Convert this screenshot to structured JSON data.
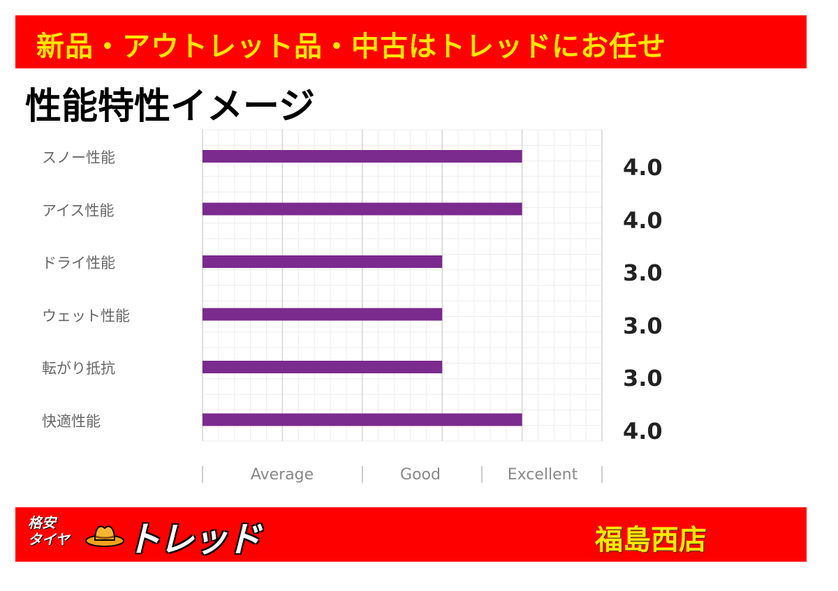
{
  "header": {
    "banner_text": "新品・アウトレット品・中古はトレッドにお任せ"
  },
  "page_title": "性能特性イメージ",
  "chart_data": {
    "type": "bar",
    "orientation": "horizontal",
    "categories": [
      "スノー性能",
      "アイス性能",
      "ドライ性能",
      "ウェット性能",
      "転がり抵抗",
      "快適性能"
    ],
    "values": [
      4.0,
      4.0,
      3.0,
      3.0,
      3.0,
      4.0
    ],
    "value_labels": [
      "4.0",
      "4.0",
      "3.0",
      "3.0",
      "3.0",
      "4.0"
    ],
    "x_tick_labels": [
      "Average",
      "Good",
      "Excellent"
    ],
    "xlim": [
      0,
      5
    ],
    "grid": true,
    "bar_color": "#7b2a8e"
  },
  "footer": {
    "brand_small_1": "格安",
    "brand_small_2": "タイヤ",
    "brand_name": "トレッド",
    "store_name": "福島西店"
  },
  "colors": {
    "banner": "#ff0000",
    "banner_text": "#ffe800"
  }
}
